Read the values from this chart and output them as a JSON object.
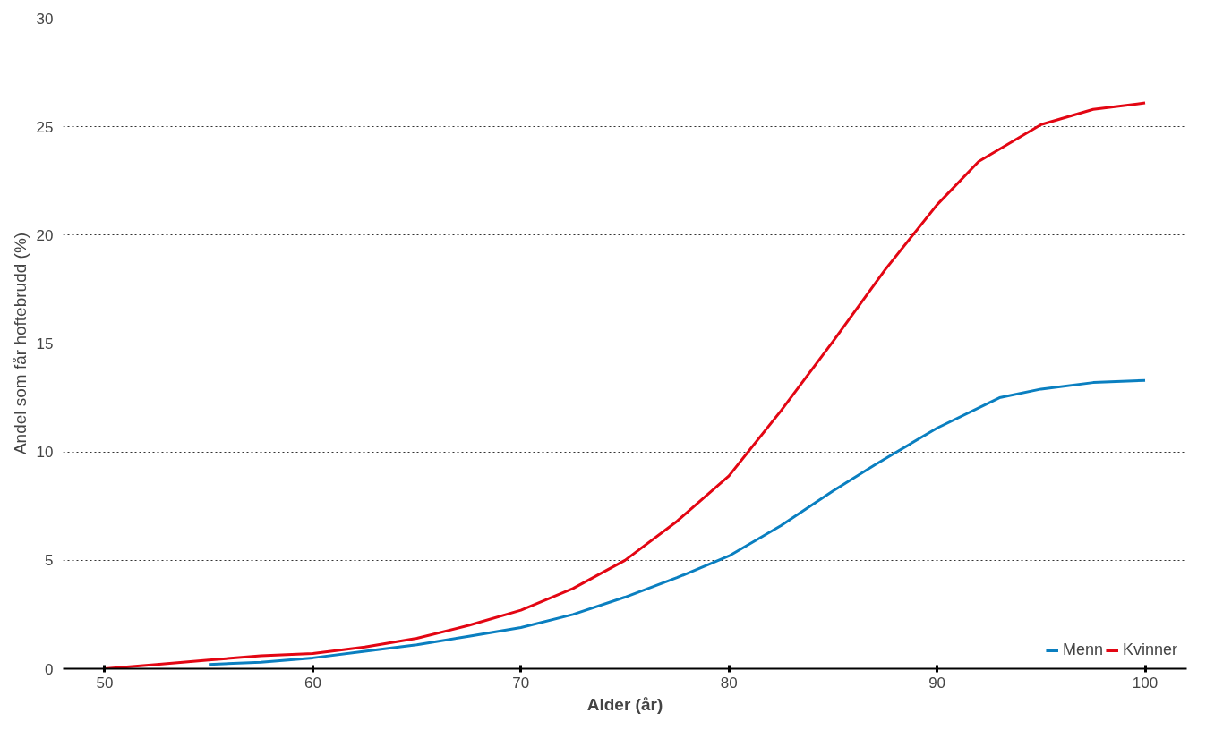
{
  "chart_data": {
    "type": "line",
    "xlabel": "Alder (år)",
    "ylabel": "Andel som får hoftebrudd (%)",
    "xlim": [
      48,
      102
    ],
    "xticks": [
      50,
      60,
      70,
      80,
      90,
      100
    ],
    "ylim": [
      0,
      30
    ],
    "yticks": [
      0,
      5,
      10,
      15,
      20,
      25,
      30
    ],
    "grid": "y",
    "legend": "bottom right",
    "line_style": "solid",
    "marker": "none",
    "series": [
      {
        "name": "Menn",
        "color": "#0a7fc0",
        "x": [
          55,
          57.5,
          60,
          62.5,
          65,
          67.5,
          70,
          72.5,
          75,
          77.5,
          80,
          82.5,
          85,
          87,
          90,
          93,
          95,
          97.5,
          100
        ],
        "values": [
          0.2,
          0.3,
          0.5,
          0.8,
          1.1,
          1.5,
          1.9,
          2.5,
          3.3,
          4.2,
          5.2,
          6.6,
          8.2,
          9.4,
          11.1,
          12.5,
          12.9,
          13.2,
          13.3
        ]
      },
      {
        "name": "Kvinner",
        "color": "#e30613",
        "x": [
          50,
          52.5,
          55,
          57.5,
          60,
          62.5,
          65,
          67.5,
          70,
          72.5,
          75,
          77.5,
          80,
          82.5,
          85,
          87.5,
          90,
          92,
          95,
          97.5,
          100
        ],
        "values": [
          0,
          0.2,
          0.4,
          0.6,
          0.7,
          1.0,
          1.4,
          2.0,
          2.7,
          3.7,
          5.0,
          6.8,
          8.9,
          11.9,
          15.1,
          18.4,
          21.4,
          23.4,
          25.1,
          25.8,
          26.1
        ]
      }
    ]
  }
}
